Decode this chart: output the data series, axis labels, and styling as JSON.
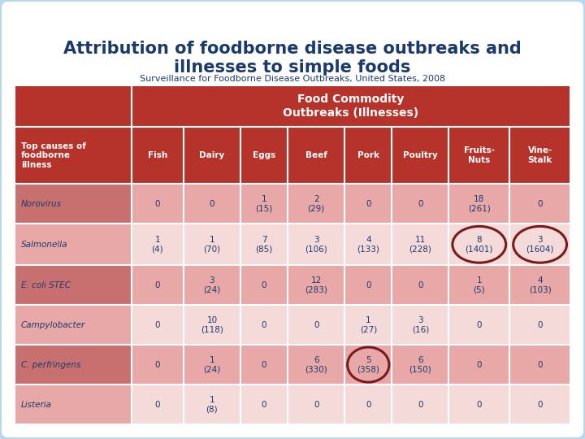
{
  "title": "Attribution of foodborne disease outbreaks and\nillnesses to simple foods",
  "subtitle": "Surveillance for Foodborne Disease Outbreaks, United States, 2008",
  "header_row1": "Food Commodity\nOutbreaks (Illnesses)",
  "col_header": "Top causes of\nfoodborne\nillness",
  "columns": [
    "Fish",
    "Dairy",
    "Eggs",
    "Beef",
    "Pork",
    "Poultry",
    "Fruits-\nNuts",
    "Vine-\nStalk"
  ],
  "rows": [
    {
      "name": "Norovirus",
      "values": [
        "0",
        "0",
        "1\n(15)",
        "2\n(29)",
        "0",
        "0",
        "18\n(261)",
        "0"
      ],
      "circles": []
    },
    {
      "name": "Salmonella",
      "values": [
        "1\n(4)",
        "1\n(70)",
        "7\n(85)",
        "3\n(106)",
        "4\n(133)",
        "11\n(228)",
        "8\n(1401)",
        "3\n(1604)"
      ],
      "circles": [
        6,
        7
      ]
    },
    {
      "name": "E. coli STEC",
      "values": [
        "0",
        "3\n(24)",
        "0",
        "12\n(283)",
        "0",
        "0",
        "1\n(5)",
        "4\n(103)"
      ],
      "circles": []
    },
    {
      "name": "Campylobacter",
      "values": [
        "0",
        "10\n(118)",
        "0",
        "0",
        "1\n(27)",
        "3\n(16)",
        "0",
        "0"
      ],
      "circles": []
    },
    {
      "name": "C. perfringens",
      "values": [
        "0",
        "1\n(24)",
        "0",
        "6\n(330)",
        "5\n(358)",
        "6\n(150)",
        "0",
        "0"
      ],
      "circles": [
        4
      ]
    },
    {
      "name": "Listeria",
      "values": [
        "0",
        "1\n(8)",
        "0",
        "0",
        "0",
        "0",
        "0",
        "0"
      ],
      "circles": []
    }
  ],
  "title_color": "#1a3a6b",
  "header_dark_color": "#b5332a",
  "header_dark_text": "#ffffff",
  "col_header_bg": "#b5332a",
  "col_header_text": "#ffffff",
  "row_odd_bg": "#e8a8a8",
  "row_even_bg": "#f5dada",
  "row_name_odd_bg": "#c96060",
  "row_name_even_bg": "#e8a8a8",
  "row_name_color": "#c0392b",
  "cell_text_color": "#1a3a6b",
  "circle_color": "#7a1a1a",
  "outer_bg": "#b8d8ee",
  "white_bg": "#ffffff"
}
